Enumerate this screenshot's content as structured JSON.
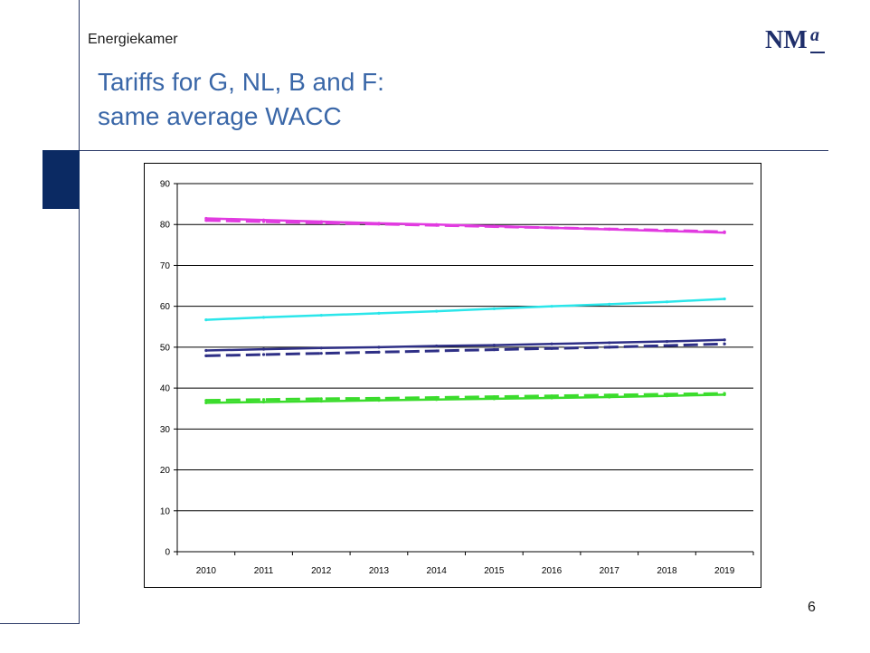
{
  "header": {
    "organization": "Energiekamer",
    "title_line1": "Tariffs for G, NL, B and F:",
    "title_line2": "same average WACC",
    "logo_text": "NMa"
  },
  "footer": {
    "page_number": "6"
  },
  "colors": {
    "title": "#3a67a8",
    "magenta": "#e13be0",
    "cyan": "#2be6ea",
    "navy": "#2e2f86",
    "green": "#3bdc2c"
  },
  "chart_data": {
    "type": "line",
    "title": "",
    "xlabel": "",
    "ylabel": "",
    "categories": [
      "2010",
      "2011",
      "2012",
      "2013",
      "2014",
      "2015",
      "2016",
      "2017",
      "2018",
      "2019"
    ],
    "ylim": [
      0,
      90
    ],
    "yticks": [
      0,
      10,
      20,
      30,
      40,
      50,
      60,
      70,
      80,
      90
    ],
    "grid": true,
    "legend": "none",
    "series": [
      {
        "values": [
          81.5,
          81.1,
          80.7,
          80.3,
          80.0,
          79.6,
          79.2,
          78.8,
          78.4,
          78.0
        ],
        "color": "#e13be0",
        "style": "solid"
      },
      {
        "values": [
          81.0,
          80.7,
          80.4,
          80.1,
          79.8,
          79.5,
          79.2,
          78.9,
          78.6,
          78.2
        ],
        "color": "#e13be0",
        "style": "dashed"
      },
      {
        "values": [
          56.7,
          57.3,
          57.8,
          58.3,
          58.8,
          59.4,
          60.0,
          60.5,
          61.1,
          61.8
        ],
        "color": "#2be6ea",
        "style": "solid"
      },
      {
        "values": [
          49.2,
          49.5,
          49.8,
          50.0,
          50.3,
          50.5,
          50.8,
          51.1,
          51.4,
          51.8
        ],
        "color": "#2e2f86",
        "style": "solid"
      },
      {
        "values": [
          47.9,
          48.2,
          48.5,
          48.8,
          49.1,
          49.4,
          49.7,
          50.0,
          50.4,
          50.8
        ],
        "color": "#2e2f86",
        "style": "dashed"
      },
      {
        "values": [
          36.4,
          36.6,
          36.8,
          37.0,
          37.2,
          37.4,
          37.6,
          37.8,
          38.1,
          38.4
        ],
        "color": "#3bdc2c",
        "style": "solid"
      },
      {
        "values": [
          37.0,
          37.2,
          37.4,
          37.5,
          37.7,
          37.9,
          38.1,
          38.3,
          38.5,
          38.7
        ],
        "color": "#3bdc2c",
        "style": "dashed"
      }
    ]
  }
}
